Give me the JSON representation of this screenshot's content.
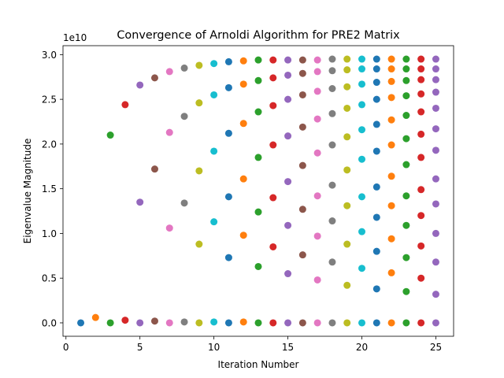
{
  "chart_data": {
    "type": "scatter",
    "title": "Convergence of Arnoldi Algorithm for PRE2 Matrix",
    "xlabel": "Iteration Number",
    "ylabel": "Eigenvalue Magnitude",
    "y_offset_text": "1e10",
    "y_scale": 10000000000,
    "xlim": [
      -0.2,
      26.2
    ],
    "ylim": [
      -0.15,
      3.1
    ],
    "x_ticks": [
      0,
      5,
      10,
      15,
      20,
      25
    ],
    "x_tick_labels": [
      "0",
      "5",
      "10",
      "15",
      "20",
      "25"
    ],
    "y_ticks": [
      0.0,
      0.5,
      1.0,
      1.5,
      2.0,
      2.5,
      3.0
    ],
    "y_tick_labels": [
      "0.0",
      "0.5",
      "1.0",
      "1.5",
      "2.0",
      "2.5",
      "3.0"
    ],
    "grid": false,
    "legend": "none",
    "colors": [
      "#1f77b4",
      "#ff7f0e",
      "#2ca02c",
      "#d62728",
      "#9467bd",
      "#8c564b",
      "#e377c2",
      "#7f7f7f",
      "#bcbd22",
      "#17becf"
    ],
    "series": [
      {
        "x": 1,
        "values": [
          0.0
        ]
      },
      {
        "x": 2,
        "values": [
          0.06
        ]
      },
      {
        "x": 3,
        "values": [
          0.0,
          2.1
        ]
      },
      {
        "x": 4,
        "values": [
          0.03,
          2.44
        ]
      },
      {
        "x": 5,
        "values": [
          0.0,
          1.35,
          2.66
        ]
      },
      {
        "x": 6,
        "values": [
          0.02,
          1.72,
          2.74
        ]
      },
      {
        "x": 7,
        "values": [
          0.0,
          1.06,
          2.13,
          2.81
        ]
      },
      {
        "x": 8,
        "values": [
          0.01,
          1.34,
          2.31,
          2.85
        ]
      },
      {
        "x": 9,
        "values": [
          0.0,
          0.88,
          1.7,
          2.46,
          2.88
        ]
      },
      {
        "x": 10,
        "values": [
          0.01,
          1.13,
          1.92,
          2.55,
          2.9
        ]
      },
      {
        "x": 11,
        "values": [
          0.0,
          0.73,
          1.41,
          2.12,
          2.63,
          2.92
        ]
      },
      {
        "x": 12,
        "values": [
          0.01,
          0.98,
          1.61,
          2.23,
          2.67,
          2.93
        ]
      },
      {
        "x": 13,
        "values": [
          0.0,
          0.63,
          1.24,
          1.85,
          2.36,
          2.71,
          2.94
        ]
      },
      {
        "x": 14,
        "values": [
          0.0,
          0.85,
          1.4,
          1.99,
          2.43,
          2.74,
          2.94
        ]
      },
      {
        "x": 15,
        "values": [
          0.0,
          0.55,
          1.09,
          1.58,
          2.09,
          2.5,
          2.77,
          2.94
        ]
      },
      {
        "x": 16,
        "values": [
          0.0,
          0.76,
          1.27,
          1.76,
          2.19,
          2.55,
          2.79,
          2.94
        ]
      },
      {
        "x": 17,
        "values": [
          0.0,
          0.48,
          0.97,
          1.42,
          1.9,
          2.28,
          2.59,
          2.81,
          2.94
        ]
      },
      {
        "x": 18,
        "values": [
          0.0,
          0.68,
          1.14,
          1.54,
          1.99,
          2.34,
          2.62,
          2.82,
          2.95
        ]
      },
      {
        "x": 19,
        "values": [
          0.0,
          0.42,
          0.88,
          1.31,
          1.71,
          2.08,
          2.4,
          2.64,
          2.83,
          2.95
        ]
      },
      {
        "x": 20,
        "values": [
          0.0,
          0.61,
          1.02,
          1.41,
          1.83,
          2.16,
          2.44,
          2.67,
          2.84,
          2.95
        ]
      },
      {
        "x": 21,
        "values": [
          0.0,
          0.38,
          0.8,
          1.18,
          1.52,
          1.92,
          2.22,
          2.5,
          2.69,
          2.84,
          2.95
        ]
      },
      {
        "x": 22,
        "values": [
          0.0,
          0.56,
          0.94,
          1.31,
          1.64,
          1.99,
          2.27,
          2.52,
          2.7,
          2.84,
          2.95
        ]
      },
      {
        "x": 23,
        "values": [
          0.0,
          0.35,
          0.73,
          1.09,
          1.42,
          1.77,
          2.06,
          2.32,
          2.54,
          2.71,
          2.84,
          2.95
        ]
      },
      {
        "x": 24,
        "values": [
          0.0,
          0.5,
          0.86,
          1.2,
          1.49,
          1.85,
          2.11,
          2.36,
          2.56,
          2.72,
          2.84,
          2.95
        ]
      },
      {
        "x": 25,
        "values": [
          0.0,
          0.32,
          0.68,
          1.0,
          1.33,
          1.61,
          1.93,
          2.17,
          2.4,
          2.58,
          2.72,
          2.84,
          2.95
        ]
      }
    ]
  }
}
